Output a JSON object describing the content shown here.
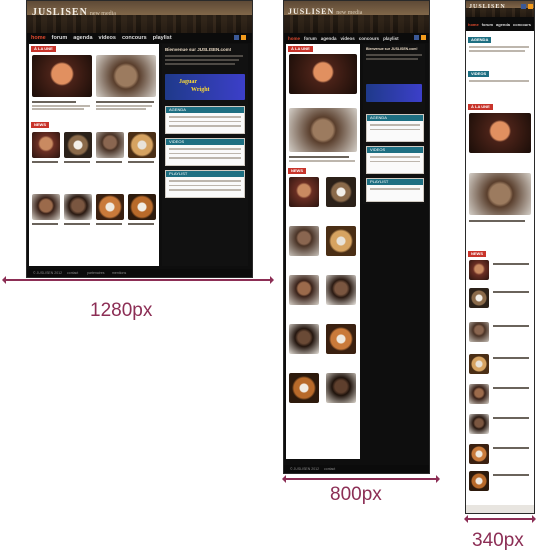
{
  "brand": {
    "logo": "JUSLISEN",
    "tagline": "new media"
  },
  "nav": {
    "items": [
      "home",
      "forum",
      "agenda",
      "videos",
      "concours",
      "playlist"
    ],
    "active": "home"
  },
  "section_labels": {
    "featured": "À LA UNE",
    "news": "NEWS",
    "right_top": "AGENDA",
    "right_mid": "VIDEOS",
    "right_bottom": "PLAYLIST"
  },
  "welcome": {
    "title": "Bienvenue sur JUSLISEN.com!"
  },
  "ad": {
    "line1": "Jaguar",
    "line2": "Wright"
  },
  "footer": {
    "items": [
      "© JUSLISEN 2012",
      "contact",
      "partenaires",
      "mentions"
    ]
  },
  "viewports": [
    {
      "label": "1280px"
    },
    {
      "label": "800px"
    },
    {
      "label": "340px"
    }
  ],
  "colors": {
    "accent_red": "#c8342b",
    "accent_teal": "#1e6f82",
    "annotation": "#8c2e55"
  }
}
